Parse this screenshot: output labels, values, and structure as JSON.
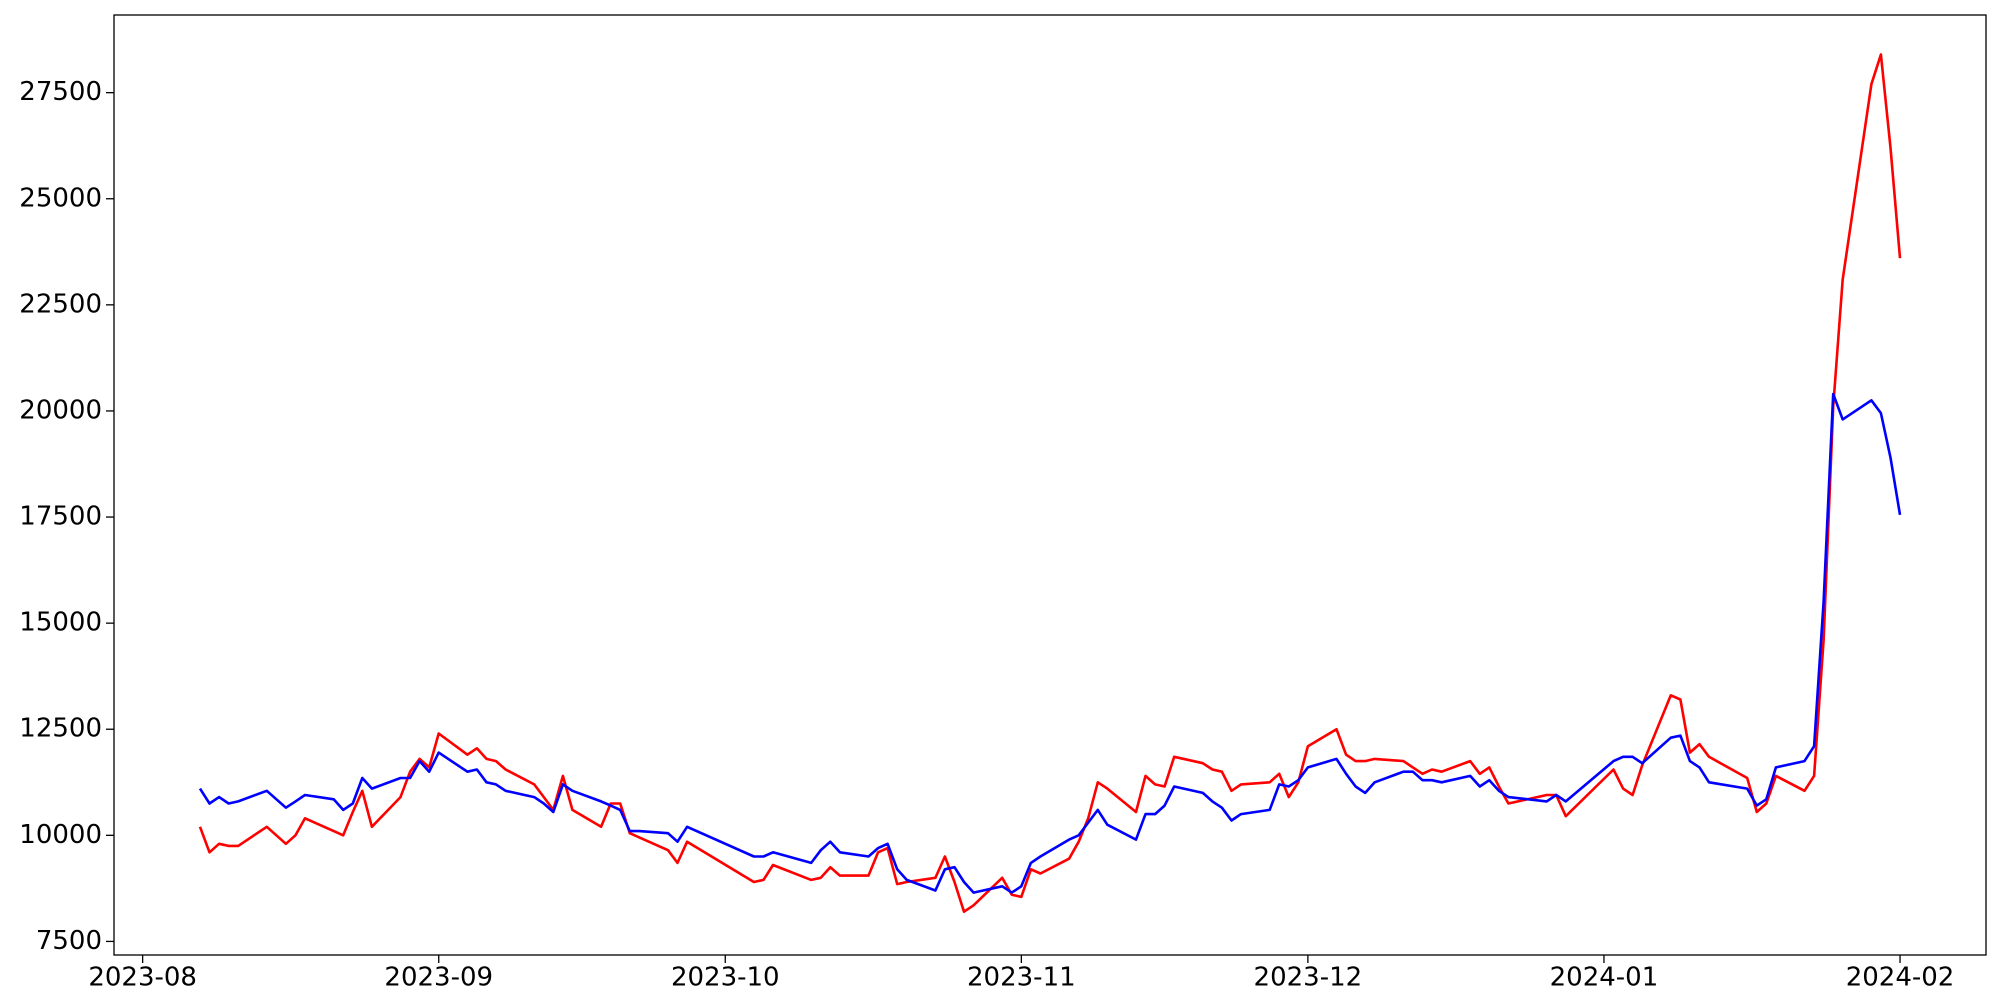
{
  "chart_data": {
    "type": "line",
    "x": [
      "2023-08-07",
      "2023-08-08",
      "2023-08-09",
      "2023-08-10",
      "2023-08-11",
      "2023-08-14",
      "2023-08-16",
      "2023-08-17",
      "2023-08-18",
      "2023-08-21",
      "2023-08-22",
      "2023-08-23",
      "2023-08-24",
      "2023-08-25",
      "2023-08-28",
      "2023-08-29",
      "2023-08-30",
      "2023-08-31",
      "2023-09-01",
      "2023-09-04",
      "2023-09-05",
      "2023-09-06",
      "2023-09-07",
      "2023-09-08",
      "2023-09-11",
      "2023-09-12",
      "2023-09-13",
      "2023-09-14",
      "2023-09-15",
      "2023-09-18",
      "2023-09-19",
      "2023-09-20",
      "2023-09-21",
      "2023-09-22",
      "2023-09-25",
      "2023-09-26",
      "2023-09-27",
      "2023-10-04",
      "2023-10-05",
      "2023-10-06",
      "2023-10-10",
      "2023-10-11",
      "2023-10-12",
      "2023-10-13",
      "2023-10-16",
      "2023-10-17",
      "2023-10-18",
      "2023-10-19",
      "2023-10-20",
      "2023-10-23",
      "2023-10-24",
      "2023-10-25",
      "2023-10-26",
      "2023-10-27",
      "2023-10-30",
      "2023-10-31",
      "2023-11-01",
      "2023-11-02",
      "2023-11-03",
      "2023-11-06",
      "2023-11-07",
      "2023-11-08",
      "2023-11-09",
      "2023-11-10",
      "2023-11-13",
      "2023-11-14",
      "2023-11-15",
      "2023-11-16",
      "2023-11-17",
      "2023-11-20",
      "2023-11-21",
      "2023-11-22",
      "2023-11-23",
      "2023-11-24",
      "2023-11-27",
      "2023-11-28",
      "2023-11-29",
      "2023-11-30",
      "2023-12-01",
      "2023-12-04",
      "2023-12-05",
      "2023-12-06",
      "2023-12-07",
      "2023-12-08",
      "2023-12-11",
      "2023-12-12",
      "2023-12-13",
      "2023-12-14",
      "2023-12-15",
      "2023-12-18",
      "2023-12-19",
      "2023-12-20",
      "2023-12-21",
      "2023-12-22",
      "2023-12-26",
      "2023-12-27",
      "2023-12-28",
      "2024-01-02",
      "2024-01-03",
      "2024-01-04",
      "2024-01-05",
      "2024-01-08",
      "2024-01-09",
      "2024-01-10",
      "2024-01-11",
      "2024-01-12",
      "2024-01-16",
      "2024-01-17",
      "2024-01-18",
      "2024-01-19",
      "2024-01-22",
      "2024-01-23",
      "2024-01-24",
      "2024-01-25",
      "2024-01-26",
      "2024-01-29",
      "2024-01-30",
      "2024-01-31",
      "2024-02-01"
    ],
    "series": [
      {
        "color": "#ff0000",
        "values": [
          10200,
          9600,
          9800,
          9750,
          9750,
          10200,
          9800,
          10000,
          10400,
          10100,
          10000,
          10550,
          11050,
          10200,
          10900,
          11500,
          11800,
          11600,
          12400,
          11900,
          12050,
          11800,
          11750,
          11550,
          11200,
          10900,
          10600,
          11400,
          10600,
          10200,
          10750,
          10750,
          10050,
          9950,
          9650,
          9350,
          9850,
          8900,
          8950,
          9300,
          8950,
          9000,
          9250,
          9050,
          9050,
          9600,
          9700,
          8850,
          8900,
          9000,
          9500,
          8900,
          8200,
          8350,
          9000,
          8600,
          8550,
          9200,
          9100,
          9450,
          9850,
          10400,
          11250,
          11100,
          10550,
          11400,
          11200,
          11150,
          11850,
          11700,
          11550,
          11500,
          11050,
          11200,
          11250,
          11450,
          10900,
          11250,
          12100,
          12500,
          11900,
          11750,
          11750,
          11800,
          11750,
          11600,
          11450,
          11550,
          11500,
          11750,
          11450,
          11600,
          11150,
          10750,
          10950,
          10950,
          10450,
          11550,
          11100,
          10950,
          11650,
          13300,
          13200,
          11950,
          12150,
          11850,
          11350,
          10550,
          10750,
          11400,
          11050,
          11400,
          14600,
          20100,
          23100,
          27700,
          28400,
          26200,
          23600
        ]
      },
      {
        "color": "#0000ff",
        "values": [
          11100,
          10750,
          10900,
          10750,
          10800,
          11050,
          10650,
          10800,
          10950,
          10850,
          10600,
          10750,
          11350,
          11100,
          11350,
          11350,
          11750,
          11500,
          11950,
          11500,
          11550,
          11250,
          11200,
          11050,
          10900,
          10750,
          10550,
          11200,
          11050,
          10800,
          10700,
          10600,
          10100,
          10100,
          10050,
          9850,
          10200,
          9500,
          9500,
          9600,
          9350,
          9650,
          9850,
          9600,
          9500,
          9700,
          9800,
          9200,
          8950,
          8700,
          9200,
          9250,
          8900,
          8650,
          8800,
          8650,
          8800,
          9350,
          9500,
          9900,
          10000,
          10300,
          10600,
          10250,
          9900,
          10500,
          10500,
          10700,
          11150,
          11000,
          10800,
          10650,
          10350,
          10500,
          10600,
          11200,
          11150,
          11300,
          11600,
          11800,
          11450,
          11150,
          11000,
          11250,
          11500,
          11500,
          11300,
          11300,
          11250,
          11400,
          11150,
          11300,
          11050,
          10900,
          10800,
          10950,
          10800,
          11750,
          11850,
          11850,
          11700,
          12300,
          12350,
          11750,
          11600,
          11250,
          11100,
          10700,
          10850,
          11600,
          11750,
          12100,
          15500,
          20400,
          19800,
          20250,
          19950,
          18900,
          17550
        ]
      }
    ],
    "xlim": [
      "2023-07-29",
      "2024-02-10"
    ],
    "xticks": [
      {
        "value": "2023-08-01",
        "label": "2023-08"
      },
      {
        "value": "2023-09-01",
        "label": "2023-09"
      },
      {
        "value": "2023-10-01",
        "label": "2023-10"
      },
      {
        "value": "2023-11-01",
        "label": "2023-11"
      },
      {
        "value": "2023-12-01",
        "label": "2023-12"
      },
      {
        "value": "2024-01-01",
        "label": "2024-01"
      },
      {
        "value": "2024-02-01",
        "label": "2024-02"
      }
    ],
    "ylim": [
      7180,
      29330
    ],
    "yticks": [
      7500,
      10000,
      12500,
      15000,
      17500,
      20000,
      22500,
      25000,
      27500
    ],
    "grid": false
  }
}
